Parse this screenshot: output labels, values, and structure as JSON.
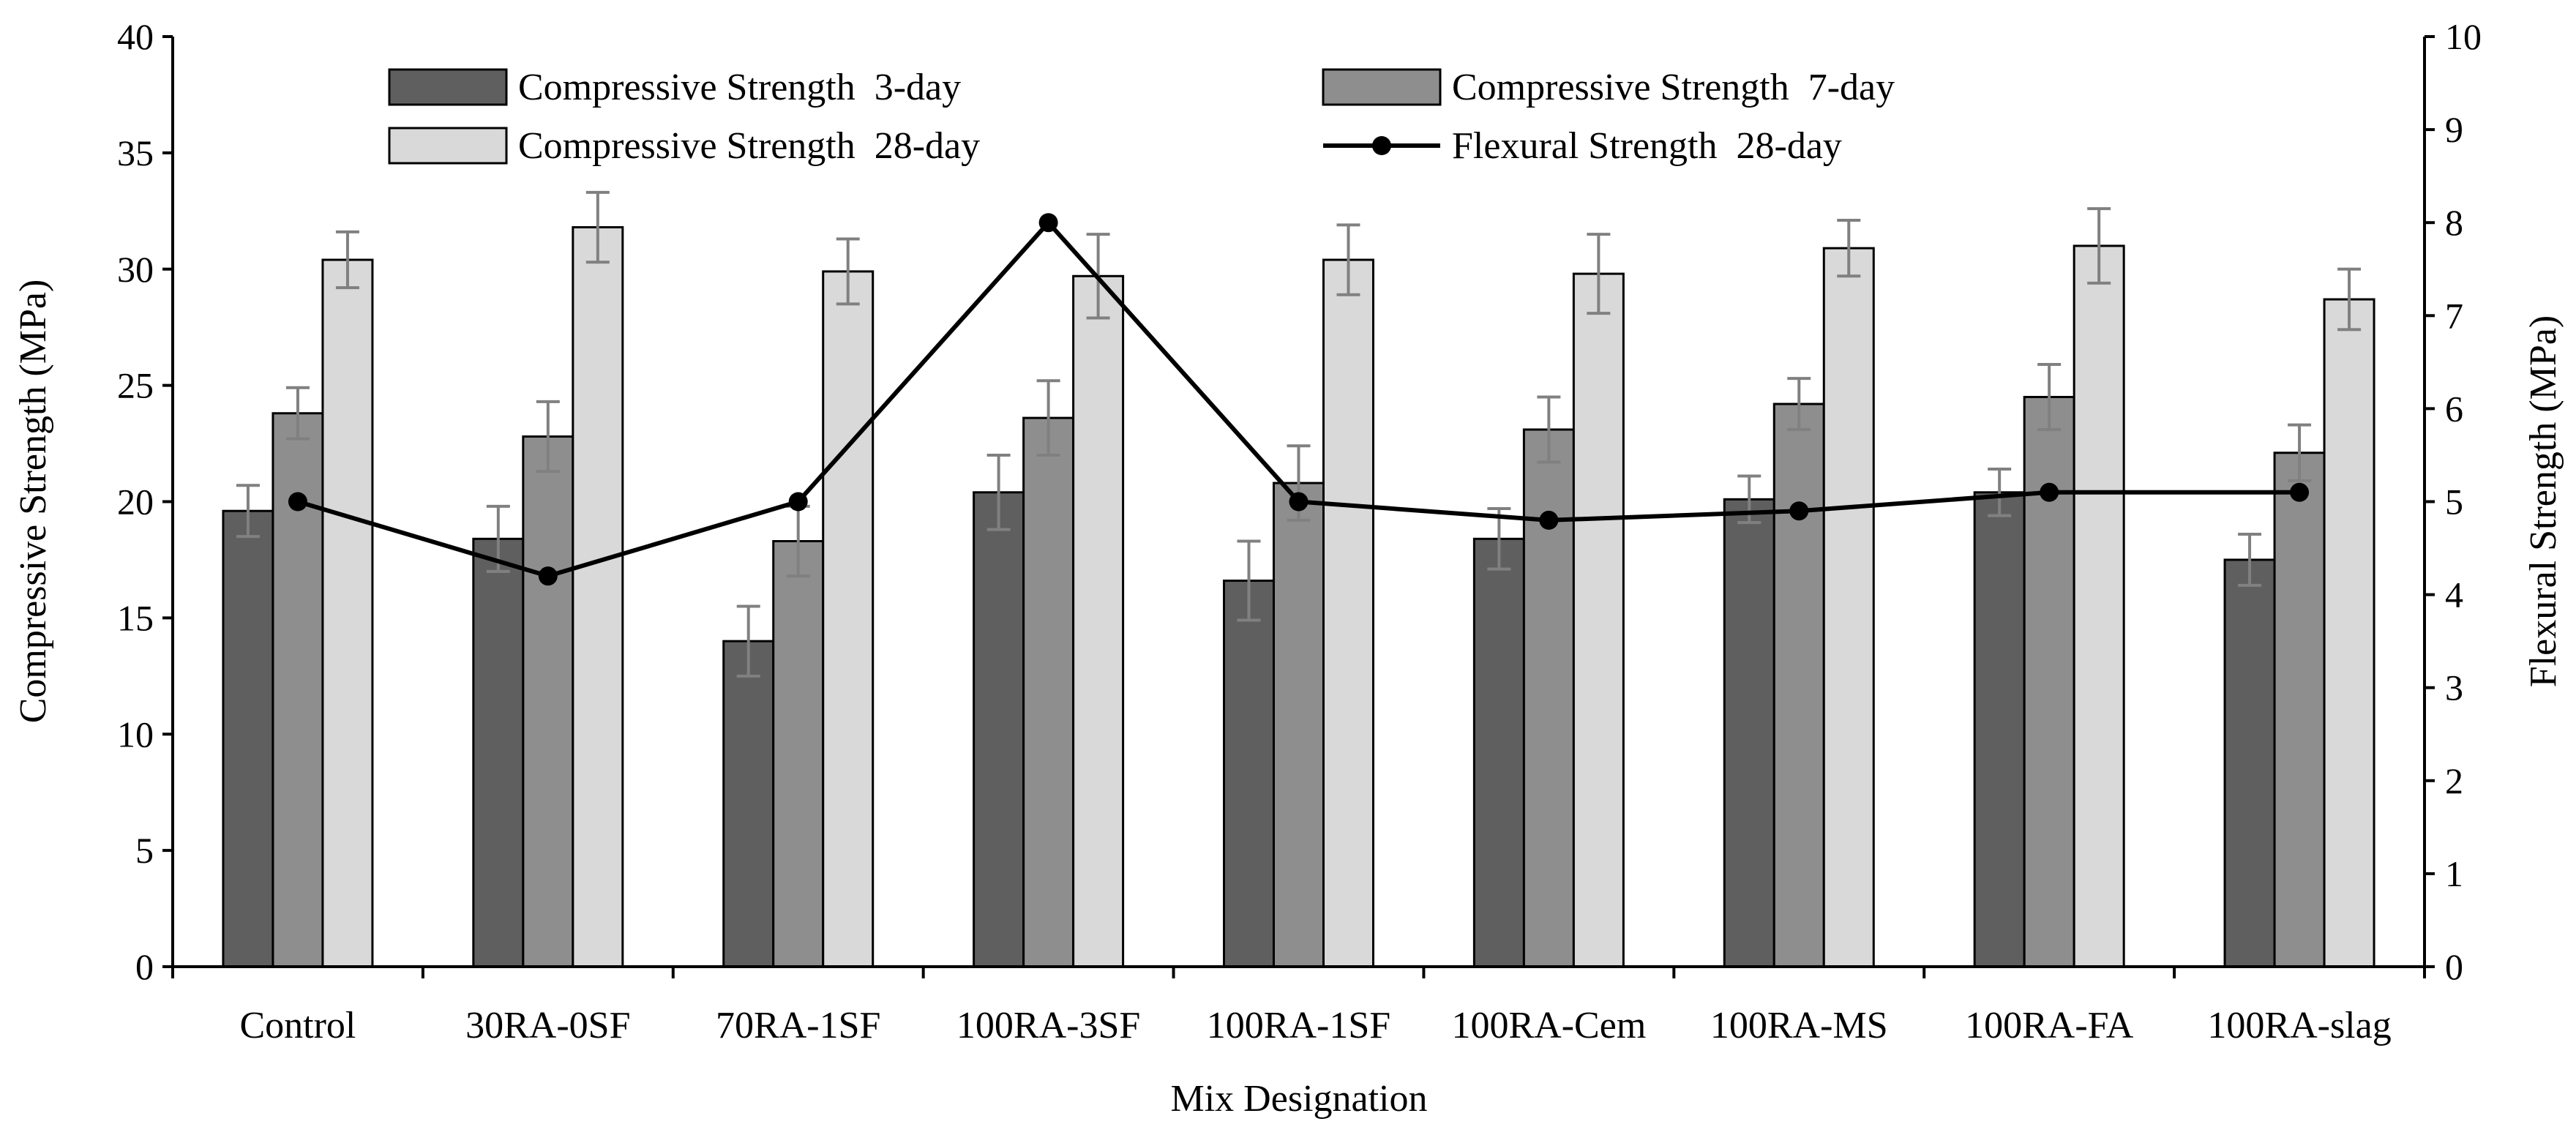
{
  "chart_data": {
    "type": "bar",
    "title": "",
    "xlabel": "Mix Designation",
    "ylabel": "Compressive Strength (MPa)",
    "y2label": "Flexural Strength (MPa)",
    "ylim": [
      0,
      40
    ],
    "y2lim": [
      0,
      10
    ],
    "yticks": [
      "0",
      "5",
      "10",
      "15",
      "20",
      "25",
      "30",
      "35",
      "40"
    ],
    "y2ticks": [
      "0",
      "1",
      "2",
      "3",
      "4",
      "5",
      "6",
      "7",
      "8",
      "9",
      "10"
    ],
    "categories": [
      "Control",
      "30RA-0SF",
      "70RA-1SF",
      "100RA-3SF",
      "100RA-1SF",
      "100RA-Cem",
      "100RA-MS",
      "100RA-FA",
      "100RA-slag"
    ],
    "series": [
      {
        "name": "Compressive Strength  3-day",
        "kind": "bar",
        "color": "#5f5f5f",
        "values": [
          19.6,
          18.4,
          14.0,
          20.4,
          16.6,
          18.4,
          20.1,
          20.4,
          17.5
        ],
        "errors": [
          1.1,
          1.4,
          1.5,
          1.6,
          1.7,
          1.3,
          1.0,
          1.0,
          1.1
        ]
      },
      {
        "name": "Compressive Strength  7-day",
        "kind": "bar",
        "color": "#8e8e8e",
        "values": [
          23.8,
          22.8,
          18.3,
          23.6,
          20.8,
          23.1,
          24.2,
          24.5,
          22.1
        ],
        "errors": [
          1.1,
          1.5,
          1.5,
          1.6,
          1.6,
          1.4,
          1.1,
          1.4,
          1.2
        ]
      },
      {
        "name": "Compressive Strength  28-day",
        "kind": "bar",
        "color": "#d9d9d9",
        "values": [
          30.4,
          31.8,
          29.9,
          29.7,
          30.4,
          29.8,
          30.9,
          31.0,
          28.7
        ],
        "errors": [
          1.2,
          1.5,
          1.4,
          1.8,
          1.5,
          1.7,
          1.2,
          1.6,
          1.3
        ]
      },
      {
        "name": "Flexural Strength  28-day",
        "kind": "line",
        "axis": "right",
        "color": "#000000",
        "values": [
          5.0,
          4.2,
          5.0,
          8.0,
          5.0,
          4.8,
          4.9,
          5.1,
          5.1
        ]
      }
    ],
    "legend_position": "top-center"
  },
  "colors": {
    "axis": "#000000",
    "error_bar": "#808080",
    "bar_outline": "#000000"
  }
}
